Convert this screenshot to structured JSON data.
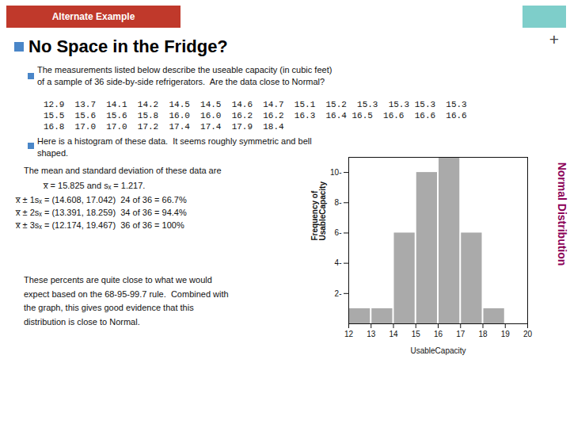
{
  "chart_data": {
    "type": "histogram",
    "title": "No Space in the Fridge?",
    "annotations": [
      "Alternate Example",
      "Normal Distribution",
      "+",
      "The measurements listed below describe the useable capacity (in cubic feet)\nof a sample of 36 side-by-side refrigerators.  Are the data close to Normal?",
      "12.9  13.7  14.1  14.2  14.5  14.5  14.6  14.7  15.1  15.2  15.3  15.3 15.3  15.3",
      "15.5  15.6  15.6  15.8  16.0  16.0  16.2  16.2  16.3  16.4 16.5  16.6  16.6  16.6",
      "16.8  17.0  17.0  17.2  17.4  17.4  17.9  18.4",
      "Here is a histogram of these data.  It seems roughly symmetric and bell\nshaped.",
      "The mean and standard deviation of these data are",
      "x̅ = 15.825 and sₓ = 1.217.",
      "x̅ ± 1sₓ = (14.608, 17.042)  24 of 36 = 66.7%",
      "x̅ ± 2sₓ = (13.391, 18.259)  34 of 36 = 94.4%",
      "x̅ ± 3sₓ = (12.174, 19.467)  36 of 36 = 100%",
      "These percents are quite close to what we would\nexpect based on the 68-95-99.7 rule.  Combined with\nthe graph, this gives good evidence that this\ndistribution is close to Normal."
    ],
    "bins": [
      12,
      13,
      14,
      15,
      16,
      17,
      18,
      19,
      20
    ],
    "values": [
      1,
      1,
      6,
      10,
      11,
      6,
      1,
      0
    ],
    "color": "#aaaaaa",
    "x_label": "UsableCapacity",
    "y_label": "Frequency of\nUsableCapacity",
    "xlim": [
      12,
      20
    ],
    "xticks": [
      12,
      13,
      14,
      15,
      16,
      17,
      18,
      19,
      20
    ],
    "ylim": [
      0,
      11
    ],
    "yticks": [
      {
        "value": 2,
        "label": "2-"
      },
      {
        "value": 4,
        "label": "4-"
      },
      {
        "value": 6,
        "label": "6-"
      },
      {
        "value": 8,
        "label": "8-"
      },
      {
        "value": 10,
        "label": "10-"
      }
    ],
    "grid": false
  }
}
